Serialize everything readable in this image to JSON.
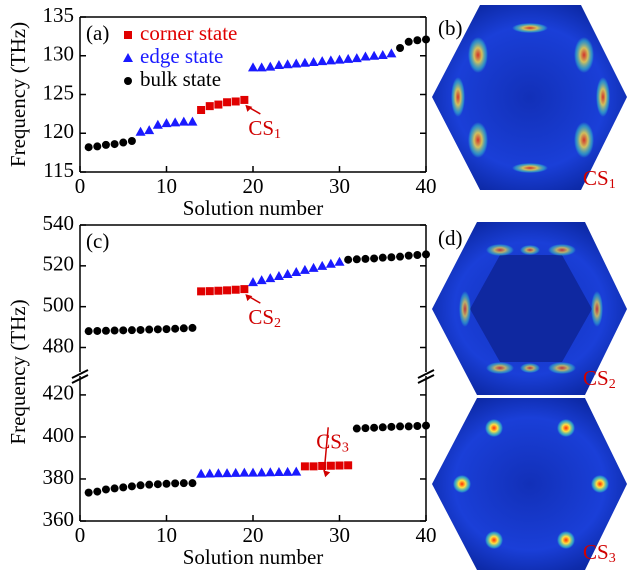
{
  "chart_data": [
    {
      "type": "scatter",
      "title": "(a)",
      "ylabel": "Frequency (THz)",
      "xlabel": "Solution number",
      "xlim": [
        0,
        40
      ],
      "xticks": [
        0,
        10,
        20,
        30,
        40
      ],
      "ylim": [
        115,
        135
      ],
      "yticks": [
        115,
        120,
        125,
        130,
        135
      ],
      "legend": "upper left",
      "series": [
        {
          "name": "corner state",
          "color": "#e00000",
          "marker": "square",
          "x": [
            14,
            15,
            16,
            17,
            18,
            19
          ],
          "values": [
            123.0,
            123.5,
            123.7,
            124.0,
            124.1,
            124.3
          ]
        },
        {
          "name": "edge state",
          "color": "#1a1aff",
          "marker": "triangle",
          "x": [
            7,
            8,
            9,
            10,
            11,
            12,
            13,
            20,
            21,
            22,
            23,
            24,
            25,
            26,
            27,
            28,
            29,
            30,
            31,
            32,
            33,
            34,
            35,
            36
          ],
          "values": [
            120.2,
            120.4,
            121.1,
            121.3,
            121.4,
            121.5,
            121.5,
            128.5,
            128.5,
            128.6,
            128.8,
            128.9,
            129.0,
            129.1,
            129.2,
            129.3,
            129.4,
            129.5,
            129.6,
            129.7,
            129.9,
            130.0,
            130.1,
            130.3
          ]
        },
        {
          "name": "bulk state",
          "color": "#000000",
          "marker": "circle",
          "x": [
            1,
            2,
            3,
            4,
            5,
            6,
            37,
            38,
            39,
            40
          ],
          "values": [
            118.2,
            118.3,
            118.5,
            118.6,
            118.8,
            119.0,
            131.0,
            131.8,
            132.0,
            132.1
          ]
        }
      ],
      "annotations": [
        {
          "text": "CS",
          "sub": "1",
          "x": 19,
          "y": 124.3
        }
      ]
    },
    {
      "type": "scatter",
      "title": "(c)",
      "xlim": [
        0,
        40
      ],
      "ylim": [
        468,
        540
      ],
      "yticks": [
        480,
        500,
        520,
        540
      ],
      "series": [
        {
          "color": "#e00000",
          "marker": "square",
          "x": [
            14,
            15,
            16,
            17,
            18,
            19
          ],
          "values": [
            507.5,
            507.6,
            507.8,
            508.0,
            508.3,
            508.6
          ]
        },
        {
          "color": "#1a1aff",
          "marker": "triangle",
          "x": [
            20,
            21,
            22,
            23,
            24,
            25,
            26,
            27,
            28,
            29,
            30
          ],
          "values": [
            512,
            513,
            514,
            515,
            516,
            517,
            518,
            519,
            520,
            521,
            522
          ]
        },
        {
          "color": "#000000",
          "marker": "circle",
          "x": [
            1,
            2,
            3,
            4,
            5,
            6,
            7,
            8,
            9,
            10,
            11,
            12,
            13,
            31,
            32,
            33,
            34,
            35,
            36,
            37,
            38,
            39,
            40
          ],
          "values": [
            488,
            488.1,
            488.2,
            488.3,
            488.4,
            488.5,
            488.6,
            488.8,
            488.9,
            489.0,
            489.2,
            489.4,
            489.6,
            523,
            523.2,
            523.4,
            523.6,
            524,
            524.2,
            524.5,
            525,
            525.3,
            525.6
          ]
        }
      ],
      "annotations": [
        {
          "text": "CS",
          "sub": "2",
          "x": 19,
          "y": 508.6
        }
      ]
    },
    {
      "type": "scatter",
      "ylabel": "Frequency (THz)",
      "xlabel": "Solution number",
      "xlim": [
        0,
        40
      ],
      "xticks": [
        0,
        10,
        20,
        30,
        40
      ],
      "ylim": [
        360,
        429
      ],
      "yticks": [
        360,
        380,
        400,
        420
      ],
      "series": [
        {
          "color": "#e00000",
          "marker": "square",
          "x": [
            26,
            27,
            28,
            29,
            30,
            31
          ],
          "values": [
            386.0,
            386.0,
            386.2,
            386.3,
            386.4,
            386.5
          ]
        },
        {
          "color": "#1a1aff",
          "marker": "triangle",
          "x": [
            14,
            15,
            16,
            17,
            18,
            19,
            20,
            21,
            22,
            23,
            24,
            25
          ],
          "values": [
            382.5,
            382.6,
            382.7,
            382.8,
            382.9,
            383.0,
            383.0,
            383.1,
            383.2,
            383.3,
            383.4,
            383.5
          ]
        },
        {
          "color": "#000000",
          "marker": "circle",
          "x": [
            1,
            2,
            3,
            4,
            5,
            6,
            7,
            8,
            9,
            10,
            11,
            12,
            13,
            32,
            33,
            34,
            35,
            36,
            37,
            38,
            39,
            40
          ],
          "values": [
            373.5,
            374,
            375,
            375.5,
            376,
            376.5,
            377,
            377.3,
            377.5,
            377.7,
            377.9,
            378,
            378,
            404,
            404.2,
            404.4,
            404.6,
            404.8,
            405,
            405,
            405.2,
            405.4
          ]
        }
      ],
      "annotations": [
        {
          "text": "CS",
          "sub": "3",
          "x": 28,
          "y": 386.5
        }
      ]
    }
  ],
  "images": [
    {
      "label": "(b)",
      "caption": {
        "text": "CS",
        "sub": "1"
      }
    },
    {
      "label": "(d)",
      "caption": {
        "text": "CS",
        "sub": "2"
      }
    },
    {
      "caption": {
        "text": "CS",
        "sub": "3"
      }
    }
  ]
}
